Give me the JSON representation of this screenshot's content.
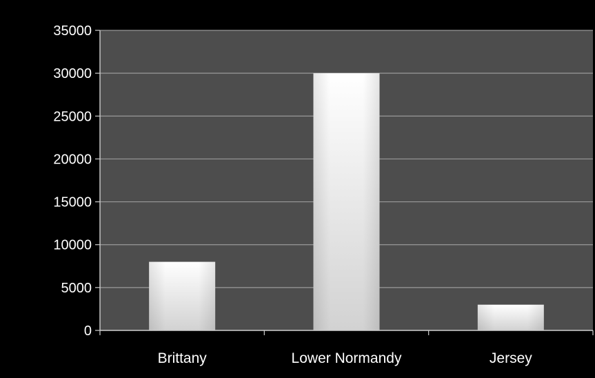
{
  "chart_data": {
    "type": "bar",
    "title": "",
    "xlabel": "",
    "ylabel": "",
    "categories": [
      "Brittany",
      "Lower Normandy",
      "Jersey"
    ],
    "values": [
      8000,
      30000,
      3000
    ],
    "ylim": [
      0,
      35000
    ],
    "yticks": [
      0,
      5000,
      10000,
      15000,
      20000,
      25000,
      30000,
      35000
    ],
    "grid": true,
    "legend": "none",
    "colors": {
      "background": "#000000",
      "plot_area": "#4d4d4d",
      "gridline": "#9a9a9a",
      "axis": "#cfcfcf",
      "bar_light": "#ffffff",
      "bar_dark": "#d2d2d2",
      "text": "#ffffff"
    }
  }
}
